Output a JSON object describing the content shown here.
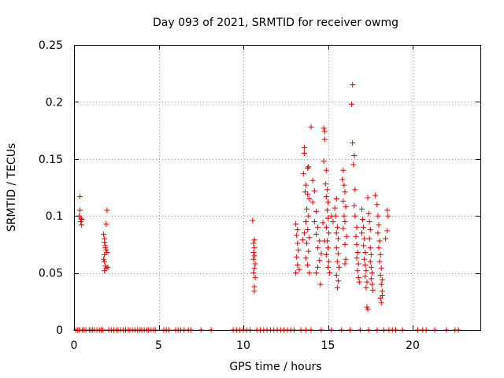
{
  "chart_data": {
    "type": "scatter",
    "title": "Day 093 of 2021, SRMTID for receiver owmg",
    "xlabel": "GPS time / hours",
    "ylabel": "SRMTID / TECUs",
    "xlim": [
      0,
      24
    ],
    "ylim": [
      0,
      0.25
    ],
    "x_ticks": [
      0,
      5,
      10,
      15,
      20
    ],
    "x_tick_labels": [
      "0",
      "5",
      "10",
      "15",
      "20"
    ],
    "y_ticks": [
      0,
      0.05,
      0.1,
      0.15,
      0.2,
      0.25
    ],
    "y_tick_labels": [
      "0",
      "0.05",
      "0.1",
      "0.15",
      "0.2",
      "0.25"
    ],
    "grid": true,
    "marker": "+",
    "series": [
      {
        "name": "SRMTID",
        "color": "#e00000",
        "points": [
          [
            0.35,
            0.117
          ],
          [
            0.35,
            0.105
          ],
          [
            0.4,
            0.098
          ],
          [
            0.4,
            0.095
          ],
          [
            0.45,
            0.092
          ],
          [
            0.3,
            0.1
          ],
          [
            0.45,
            0.097
          ],
          [
            1.75,
            0.084
          ],
          [
            1.8,
            0.08
          ],
          [
            1.8,
            0.077
          ],
          [
            1.85,
            0.074
          ],
          [
            1.85,
            0.072
          ],
          [
            1.9,
            0.07
          ],
          [
            1.8,
            0.066
          ],
          [
            1.75,
            0.062
          ],
          [
            1.8,
            0.06
          ],
          [
            1.85,
            0.056
          ],
          [
            1.9,
            0.054
          ],
          [
            1.8,
            0.052
          ],
          [
            1.95,
            0.105
          ],
          [
            1.9,
            0.093
          ],
          [
            1.95,
            0.068
          ],
          [
            2.0,
            0.055
          ],
          [
            10.55,
            0.096
          ],
          [
            10.65,
            0.079
          ],
          [
            10.6,
            0.076
          ],
          [
            10.65,
            0.072
          ],
          [
            10.6,
            0.068
          ],
          [
            10.65,
            0.065
          ],
          [
            10.6,
            0.062
          ],
          [
            10.7,
            0.058
          ],
          [
            10.65,
            0.054
          ],
          [
            10.6,
            0.05
          ],
          [
            10.7,
            0.046
          ],
          [
            10.65,
            0.038
          ],
          [
            10.65,
            0.034
          ],
          [
            13.1,
            0.093
          ],
          [
            13.2,
            0.088
          ],
          [
            13.15,
            0.083
          ],
          [
            13.2,
            0.076
          ],
          [
            13.25,
            0.07
          ],
          [
            13.15,
            0.064
          ],
          [
            13.2,
            0.057
          ],
          [
            13.3,
            0.053
          ],
          [
            13.1,
            0.05
          ],
          [
            13.6,
            0.16
          ],
          [
            13.6,
            0.155
          ],
          [
            13.55,
            0.137
          ],
          [
            13.7,
            0.127
          ],
          [
            13.65,
            0.121
          ],
          [
            13.8,
            0.142
          ],
          [
            13.85,
            0.143
          ],
          [
            13.8,
            0.119
          ],
          [
            13.9,
            0.115
          ],
          [
            13.75,
            0.106
          ],
          [
            13.85,
            0.1
          ],
          [
            13.7,
            0.095
          ],
          [
            13.8,
            0.088
          ],
          [
            13.9,
            0.081
          ],
          [
            13.75,
            0.076
          ],
          [
            13.85,
            0.069
          ],
          [
            13.7,
            0.063
          ],
          [
            13.8,
            0.057
          ],
          [
            13.9,
            0.05
          ],
          [
            13.6,
            0.085
          ],
          [
            13.5,
            0.079
          ],
          [
            14.0,
            0.178
          ],
          [
            14.1,
            0.131
          ],
          [
            14.2,
            0.122
          ],
          [
            14.1,
            0.112
          ],
          [
            14.3,
            0.104
          ],
          [
            14.2,
            0.095
          ],
          [
            14.4,
            0.09
          ],
          [
            14.3,
            0.084
          ],
          [
            14.5,
            0.078
          ],
          [
            14.4,
            0.072
          ],
          [
            14.6,
            0.067
          ],
          [
            14.5,
            0.061
          ],
          [
            14.4,
            0.055
          ],
          [
            14.3,
            0.05
          ],
          [
            14.55,
            0.04
          ],
          [
            14.7,
            0.094
          ],
          [
            14.8,
            0.078
          ],
          [
            14.75,
            0.177
          ],
          [
            14.8,
            0.174
          ],
          [
            14.8,
            0.167
          ],
          [
            14.75,
            0.148
          ],
          [
            14.9,
            0.14
          ],
          [
            14.85,
            0.128
          ],
          [
            14.95,
            0.123
          ],
          [
            14.9,
            0.117
          ],
          [
            15.0,
            0.112
          ],
          [
            14.95,
            0.105
          ],
          [
            15.0,
            0.098
          ],
          [
            14.9,
            0.09
          ],
          [
            15.05,
            0.085
          ],
          [
            14.95,
            0.078
          ],
          [
            15.0,
            0.072
          ],
          [
            14.9,
            0.066
          ],
          [
            15.05,
            0.06
          ],
          [
            15.0,
            0.055
          ],
          [
            15.1,
            0.05
          ],
          [
            15.2,
            0.1
          ],
          [
            15.3,
            0.095
          ],
          [
            15.4,
            0.107
          ],
          [
            15.5,
            0.115
          ],
          [
            15.45,
            0.1
          ],
          [
            15.55,
            0.09
          ],
          [
            15.5,
            0.085
          ],
          [
            15.6,
            0.08
          ],
          [
            15.5,
            0.072
          ],
          [
            15.6,
            0.067
          ],
          [
            15.55,
            0.06
          ],
          [
            15.65,
            0.055
          ],
          [
            15.5,
            0.048
          ],
          [
            15.6,
            0.043
          ],
          [
            15.55,
            0.037
          ],
          [
            15.9,
            0.14
          ],
          [
            15.85,
            0.132
          ],
          [
            15.95,
            0.127
          ],
          [
            16.0,
            0.121
          ],
          [
            15.9,
            0.113
          ],
          [
            16.05,
            0.108
          ],
          [
            15.95,
            0.1
          ],
          [
            16.0,
            0.095
          ],
          [
            15.9,
            0.089
          ],
          [
            16.1,
            0.082
          ],
          [
            16.0,
            0.075
          ],
          [
            16.05,
            0.062
          ],
          [
            16.0,
            0.058
          ],
          [
            16.45,
            0.215
          ],
          [
            16.4,
            0.198
          ],
          [
            16.45,
            0.164
          ],
          [
            16.55,
            0.153
          ],
          [
            16.5,
            0.145
          ],
          [
            16.6,
            0.123
          ],
          [
            16.55,
            0.109
          ],
          [
            16.6,
            0.1
          ],
          [
            16.7,
            0.09
          ],
          [
            16.65,
            0.082
          ],
          [
            16.7,
            0.075
          ],
          [
            16.75,
            0.068
          ],
          [
            16.7,
            0.063
          ],
          [
            16.8,
            0.058
          ],
          [
            16.75,
            0.052
          ],
          [
            16.8,
            0.046
          ],
          [
            16.85,
            0.042
          ],
          [
            17.0,
            0.106
          ],
          [
            17.05,
            0.097
          ],
          [
            17.1,
            0.09
          ],
          [
            17.0,
            0.085
          ],
          [
            17.15,
            0.08
          ],
          [
            17.1,
            0.074
          ],
          [
            17.2,
            0.068
          ],
          [
            17.15,
            0.062
          ],
          [
            17.2,
            0.057
          ],
          [
            17.25,
            0.052
          ],
          [
            17.2,
            0.047
          ],
          [
            17.3,
            0.042
          ],
          [
            17.25,
            0.037
          ],
          [
            17.3,
            0.02
          ],
          [
            17.35,
            0.018
          ],
          [
            17.35,
            0.116
          ],
          [
            17.4,
            0.102
          ],
          [
            17.45,
            0.095
          ],
          [
            17.5,
            0.088
          ],
          [
            17.45,
            0.08
          ],
          [
            17.5,
            0.072
          ],
          [
            17.55,
            0.066
          ],
          [
            17.5,
            0.06
          ],
          [
            17.55,
            0.055
          ],
          [
            17.6,
            0.05
          ],
          [
            17.55,
            0.045
          ],
          [
            17.6,
            0.04
          ],
          [
            17.65,
            0.035
          ],
          [
            17.8,
            0.118
          ],
          [
            17.9,
            0.11
          ],
          [
            17.95,
            0.1
          ],
          [
            18.0,
            0.092
          ],
          [
            17.95,
            0.085
          ],
          [
            18.05,
            0.078
          ],
          [
            18.0,
            0.072
          ],
          [
            18.1,
            0.066
          ],
          [
            18.05,
            0.06
          ],
          [
            18.15,
            0.054
          ],
          [
            18.1,
            0.048
          ],
          [
            18.2,
            0.044
          ],
          [
            18.15,
            0.04
          ],
          [
            18.2,
            0.034
          ],
          [
            18.1,
            0.028
          ],
          [
            18.15,
            0.024
          ],
          [
            18.2,
            0.03
          ],
          [
            18.5,
            0.105
          ],
          [
            18.55,
            0.1
          ],
          [
            18.5,
            0.087
          ],
          [
            18.4,
            0.08
          ]
        ],
        "zero_x": [
          0.1,
          0.2,
          0.3,
          0.5,
          0.6,
          0.7,
          0.9,
          1.0,
          1.1,
          1.2,
          1.35,
          1.5,
          1.6,
          1.7,
          2.05,
          2.2,
          2.35,
          2.5,
          2.6,
          2.75,
          2.9,
          3.05,
          3.2,
          3.3,
          3.45,
          3.6,
          3.75,
          3.9,
          4.0,
          4.15,
          4.3,
          4.4,
          4.55,
          4.7,
          4.8,
          5.3,
          5.45,
          5.6,
          6.0,
          6.15,
          6.3,
          6.5,
          6.75,
          6.9,
          7.5,
          8.1,
          9.4,
          9.6,
          9.8,
          10.0,
          10.2,
          10.4,
          10.8,
          11.0,
          11.2,
          11.4,
          11.6,
          11.8,
          12.0,
          12.2,
          12.4,
          12.6,
          12.8,
          13.0,
          13.4,
          13.7,
          14.0,
          14.6,
          15.2,
          15.8,
          16.3,
          16.9,
          17.4,
          17.9,
          18.3,
          18.6,
          18.8,
          19.0,
          19.4,
          20.3,
          20.6,
          20.8,
          21.3,
          22.0,
          22.5,
          22.7
        ]
      }
    ]
  }
}
